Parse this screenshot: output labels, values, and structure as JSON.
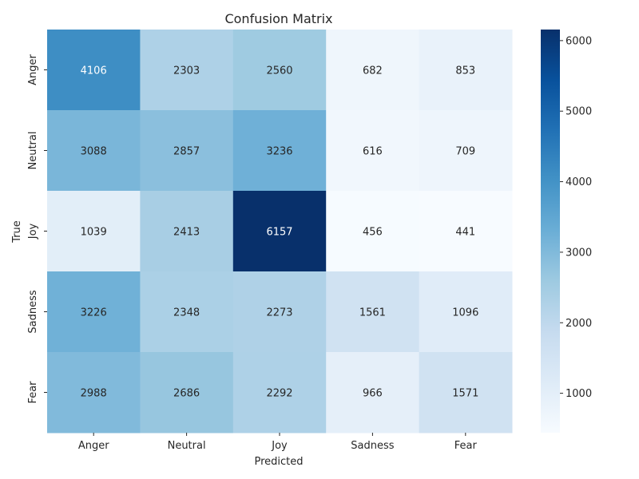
{
  "chart_data": {
    "type": "heatmap",
    "title": "Confusion Matrix",
    "xlabel": "Predicted",
    "ylabel": "True",
    "x_categories": [
      "Anger",
      "Neutral",
      "Joy",
      "Sadness",
      "Fear"
    ],
    "y_categories": [
      "Anger",
      "Neutral",
      "Joy",
      "Sadness",
      "Fear"
    ],
    "values": [
      [
        4106,
        2303,
        2560,
        682,
        853
      ],
      [
        3088,
        2857,
        3236,
        616,
        709
      ],
      [
        1039,
        2413,
        6157,
        456,
        441
      ],
      [
        3226,
        2348,
        2273,
        1561,
        1096
      ],
      [
        2988,
        2686,
        2292,
        966,
        1571
      ]
    ],
    "colormap": "Blues",
    "colormap_colors": [
      "#f7fbff",
      "#deebf7",
      "#c6dbef",
      "#9ecae1",
      "#6baed6",
      "#4292c6",
      "#2171b5",
      "#08519c",
      "#08306b"
    ],
    "vmin": 441,
    "vmax": 6157,
    "colorbar_ticks": [
      1000,
      2000,
      3000,
      4000,
      5000,
      6000
    ],
    "annotation_dark_text": "#262626",
    "annotation_light_text": "#ffffff"
  }
}
